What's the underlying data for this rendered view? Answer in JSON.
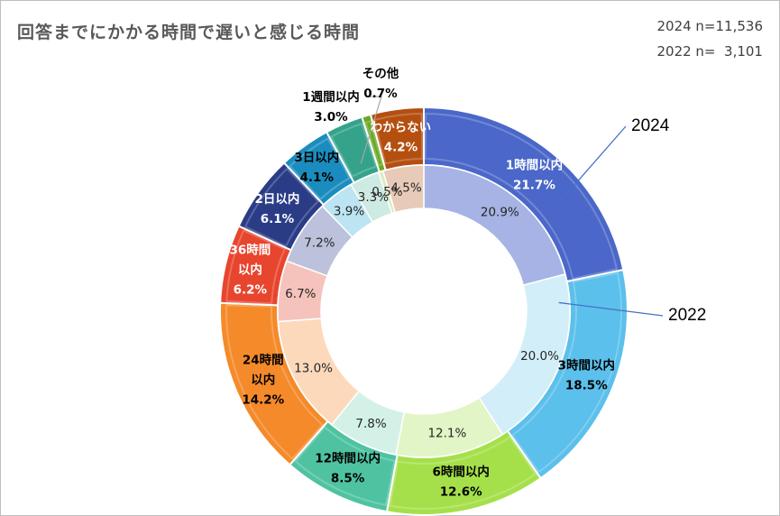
{
  "title": "回答までにかかる時間で遅いと感じる時間",
  "sample_sizes": [
    "2024 n=11,536",
    "2022 n=  3,101"
  ],
  "chart_data": {
    "type": "donut",
    "title": "回答までにかかる時間で遅いと感じる時間",
    "categories": [
      "1時間以内",
      "3時間以内",
      "6時間以内",
      "12時間以内",
      "24時間以内",
      "36時間以内",
      "2日以内",
      "3日以内",
      "1週間以内",
      "その他",
      "わからない"
    ],
    "series": [
      {
        "name": "2024",
        "ring": "outer",
        "values": [
          21.7,
          18.5,
          12.6,
          8.5,
          14.2,
          6.2,
          6.1,
          4.1,
          3.0,
          0.7,
          4.2
        ],
        "labels": [
          [
            "1時間以内",
            "21.7%"
          ],
          [
            "3時間以内",
            "18.5%"
          ],
          [
            "6時間以内",
            "12.6%"
          ],
          [
            "12時間以内",
            "8.5%"
          ],
          [
            "24時間",
            "以内",
            "14.2%"
          ],
          [
            "36時間",
            "以内",
            "6.2%"
          ],
          [
            "2日以内",
            "6.1%"
          ],
          [
            "3日以内",
            "4.1%"
          ],
          [
            "1週間以内",
            "3.0%"
          ],
          [
            "その他",
            "0.7%"
          ],
          [
            "わからない",
            "4.2%"
          ]
        ]
      },
      {
        "name": "2022",
        "ring": "inner",
        "values": [
          20.9,
          20.0,
          12.1,
          7.8,
          13.0,
          6.7,
          7.2,
          3.9,
          3.3,
          0.5,
          4.5
        ],
        "labels": [
          "20.9%",
          "20.0%",
          "12.1%",
          "7.8%",
          "13.0%",
          "6.7%",
          "7.2%",
          "3.9%",
          "3.3%",
          "0.5%",
          "4.5%"
        ]
      }
    ],
    "colors": {
      "outer": [
        "#4a67c9",
        "#5bc0eb",
        "#a5e04a",
        "#4fc3a1",
        "#f58a2a",
        "#e8452e",
        "#2b3c87",
        "#1a8dbe",
        "#34a38a",
        "#6aa821",
        "#b44f10"
      ],
      "inner": [
        "#a6b3e4",
        "#d2eef9",
        "#e2f5c6",
        "#d4f1e8",
        "#fdd9bc",
        "#f5c3bb",
        "#bcc2db",
        "#bce4f2",
        "#cdebe2",
        "#d9ecc2",
        "#e8cab8"
      ]
    },
    "legend": "none"
  }
}
